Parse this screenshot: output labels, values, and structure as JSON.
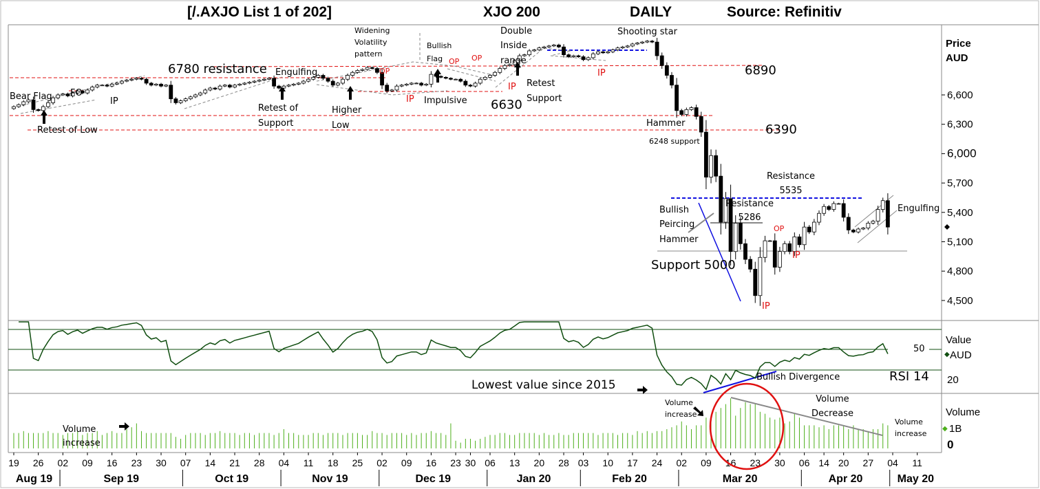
{
  "header": {
    "list": "[/.AXJO List 1 of 202]",
    "symbol": "XJO 200",
    "period": "DAILY",
    "source": "Source: Refinitiv"
  },
  "right_axis": {
    "price_title": "Price",
    "price_unit": "AUD",
    "rsi_title": "Value",
    "rsi_unit": "AUD",
    "volume_title": "Volume",
    "volume_1b": "1B",
    "volume_0": "0"
  },
  "colors": {
    "candle_up": "#ffffff",
    "candle_down": "#000000",
    "rsi_line": "#0f4d0f",
    "volume_bar": "#4caf1a",
    "resistance": "#e01010",
    "trend": "#1010e0",
    "pattern": "#888888"
  },
  "annotations": {
    "bear_flag": "Bear Flag",
    "fo": "FO",
    "ip1": "IP",
    "retest_low": "Retest of Low",
    "res6780": "6780 resistance",
    "engulfing1": "Engulfing",
    "retest_support": "Retest of\nSupport",
    "higher_low": "Higher\nLow",
    "widening": "Widening\nVolatility\npattern",
    "bullish_flag": "Bullish\nFlag",
    "op1": "OP",
    "op2": "OP",
    "op3": "OP",
    "ip2": "IP",
    "impulsive": "Impulsive",
    "l6630": "6630",
    "ip3": "IP",
    "double_inside": "Double\nInside\nrange",
    "retest_support2": "Retest\nSupport",
    "ip4": "IP",
    "shooting_star": "Shooting star",
    "l6890": "6890",
    "hammer": "Hammer",
    "s6248": "6248 support",
    "l6390": "6390",
    "res5535": "Resistance\n5535",
    "bullish_piercing": "Bullish\nPeircing\nHammer",
    "res5286": "Resistance\n5286",
    "op4": "OP",
    "ip5": "IP",
    "support5000": "Support 5000",
    "ip6": "IP",
    "engulfing2": "Engulfing",
    "rsi50": "50",
    "bullish_div": "Bullish Divergence",
    "rsi14": "RSI 14",
    "lowest": "Lowest value since 2015",
    "vol_inc1": "Volume\nincrease",
    "vol_inc2": "Volume\nincrease",
    "vol_dec": "Volume\nDecrease",
    "vol_inc3": "Volume\nincrease"
  },
  "chart_data": {
    "type": "candlestick",
    "price_axis": {
      "ticks": [
        "6,600",
        "6,300",
        "6,000",
        "5,700",
        "5,400",
        "5,100",
        "4,800",
        "4,500"
      ],
      "values": [
        6600,
        6300,
        6000,
        5700,
        5400,
        5100,
        4800,
        4500
      ],
      "ylim": [
        4400,
        7200
      ]
    },
    "rsi_axis": {
      "period": 14,
      "levels": [
        70,
        50,
        30
      ],
      "tick": "20"
    },
    "volume_unit": "B",
    "weeks": [
      {
        "label": "19",
        "month": "Aug 19",
        "c": [
          6480,
          6500,
          6530,
          6550,
          6450
        ],
        "v": [
          0.8,
          0.8,
          0.9,
          0.8,
          0.8
        ]
      },
      {
        "label": "26",
        "c": [
          6440,
          6480,
          6520,
          6570,
          6600
        ],
        "v": [
          0.8,
          0.8,
          0.9,
          0.8,
          0.8
        ]
      },
      {
        "label": "02",
        "month": "Sep 19",
        "c": [
          6610,
          6590,
          6620,
          6640,
          6620
        ],
        "v": [
          0.7,
          0.8,
          0.8,
          0.9,
          0.7
        ]
      },
      {
        "label": "09",
        "c": [
          6650,
          6680,
          6700,
          6700,
          6690
        ],
        "v": [
          0.8,
          0.8,
          0.9,
          0.7,
          0.8
        ]
      },
      {
        "label": "16",
        "c": [
          6710,
          6720,
          6740,
          6750,
          6760
        ],
        "v": [
          0.9,
          0.8,
          0.8,
          1.0,
          1.1
        ]
      },
      {
        "label": "23",
        "c": [
          6770,
          6760,
          6720,
          6700,
          6710
        ],
        "v": [
          1.3,
          0.9,
          0.8,
          0.8,
          0.8
        ]
      },
      {
        "label": "30",
        "c": [
          6690,
          6700,
          6560,
          6520,
          6540
        ],
        "v": [
          0.8,
          0.8,
          0.8,
          0.6,
          0.5
        ]
      },
      {
        "label": "07",
        "month": "Oct 19",
        "c": [
          6560,
          6580,
          6600,
          6620,
          6650
        ],
        "v": [
          0.7,
          0.8,
          0.8,
          0.8,
          0.7
        ]
      },
      {
        "label": "14",
        "c": [
          6670,
          6660,
          6690,
          6700,
          6680
        ],
        "v": [
          0.8,
          0.8,
          0.9,
          0.8,
          0.8
        ]
      },
      {
        "label": "21",
        "c": [
          6700,
          6710,
          6720,
          6730,
          6740
        ],
        "v": [
          0.8,
          0.7,
          0.8,
          0.8,
          0.7
        ]
      },
      {
        "label": "28",
        "c": [
          6750,
          6760,
          6770,
          6690,
          6670
        ],
        "v": [
          0.8,
          0.8,
          0.8,
          0.7,
          0.8
        ]
      },
      {
        "label": "04",
        "month": "Nov 19",
        "c": [
          6690,
          6700,
          6710,
          6720,
          6740
        ],
        "v": [
          1.0,
          0.8,
          0.8,
          0.7,
          0.7
        ]
      },
      {
        "label": "11",
        "c": [
          6760,
          6780,
          6800,
          6770,
          6740
        ],
        "v": [
          0.7,
          0.8,
          0.8,
          0.7,
          0.8
        ]
      },
      {
        "label": "18",
        "c": [
          6700,
          6720,
          6760,
          6800,
          6830
        ],
        "v": [
          0.8,
          0.8,
          0.7,
          0.8,
          0.8
        ]
      },
      {
        "label": "25",
        "c": [
          6850,
          6860,
          6880,
          6870,
          6830
        ],
        "v": [
          0.8,
          0.7,
          0.7,
          0.9,
          0.8
        ]
      },
      {
        "label": "02",
        "month": "Dec 19",
        "c": [
          6700,
          6640,
          6650,
          6690,
          6700
        ],
        "v": [
          0.8,
          0.7,
          0.8,
          0.8,
          0.8
        ]
      },
      {
        "label": "09",
        "c": [
          6710,
          6720,
          6720,
          6700,
          6710
        ],
        "v": [
          0.7,
          0.8,
          0.7,
          0.8,
          0.8
        ]
      },
      {
        "label": "16",
        "c": [
          6810,
          6790,
          6780,
          6770,
          6760
        ],
        "v": [
          0.9,
          0.8,
          0.8,
          0.7,
          1.3
        ]
      },
      {
        "label": "23",
        "c": [
          6760,
          6740,
          6700
        ],
        "v": [
          0.4,
          0.3,
          0.5
        ]
      },
      {
        "label": "30",
        "c": [
          6690,
          6720,
          6760,
          6780
        ],
        "v": [
          0.5,
          0.4,
          0.5,
          0.6
        ]
      },
      {
        "label": "06",
        "month": "Jan 20",
        "c": [
          6800,
          6830,
          6870,
          6900,
          6910
        ],
        "v": [
          0.7,
          0.7,
          0.8,
          0.8,
          0.7
        ]
      },
      {
        "label": "13",
        "c": [
          6950,
          7000,
          7010,
          7050,
          7060
        ],
        "v": [
          0.7,
          0.8,
          0.8,
          0.8,
          0.8
        ]
      },
      {
        "label": "20",
        "c": [
          7080,
          7090,
          7100,
          7110,
          7090
        ],
        "v": [
          0.7,
          0.8,
          0.7,
          0.7,
          0.8
        ]
      },
      {
        "label": "28",
        "c": [
          7010,
          6990,
          7000,
          6990
        ],
        "v": [
          0.7,
          0.7,
          0.8,
          0.8
        ]
      },
      {
        "label": "03",
        "month": "Feb 20",
        "c": [
          6960,
          6980,
          7020,
          7040,
          7030
        ],
        "v": [
          0.8,
          0.8,
          0.8,
          0.7,
          0.8
        ]
      },
      {
        "label": "10",
        "c": [
          7040,
          7060,
          7080,
          7090,
          7100
        ],
        "v": [
          0.8,
          0.8,
          0.7,
          0.8,
          0.8
        ]
      },
      {
        "label": "17",
        "c": [
          7120,
          7130,
          7140,
          7150,
          7140
        ],
        "v": [
          0.7,
          0.9,
          0.8,
          0.9,
          0.8
        ]
      },
      {
        "label": "24",
        "c": [
          7000,
          6900,
          6800,
          6700,
          6440
        ],
        "v": [
          0.9,
          0.9,
          1.0,
          1.1,
          1.2
        ]
      },
      {
        "label": "02",
        "month": "Mar 20",
        "c": [
          6400,
          6450,
          6470,
          6380,
          6220
        ],
        "v": [
          1.4,
          1.2,
          1.0,
          1.2,
          1.2
        ]
      },
      {
        "label": "09",
        "c": [
          5760,
          5980,
          5770,
          5300,
          5540
        ],
        "v": [
          1.6,
          1.5,
          1.9,
          2.1,
          2.3
        ]
      },
      {
        "label": "16",
        "c": [
          5000,
          5290,
          5080,
          4920,
          4820
        ],
        "v": [
          2.6,
          1.7,
          2.1,
          2.4,
          2.3
        ]
      },
      {
        "label": "23",
        "c": [
          4550,
          4940,
          5110,
          5110,
          4840
        ],
        "v": [
          2.3,
          1.9,
          1.8,
          1.6,
          1.5
        ]
      },
      {
        "label": "30",
        "c": [
          5000,
          5080,
          5000,
          5150,
          5070
        ],
        "v": [
          1.6,
          1.3,
          1.4,
          1.8,
          1.6
        ]
      },
      {
        "label": "06",
        "month": "Apr 20",
        "c": [
          5250,
          5200,
          5300,
          5390
        ],
        "v": [
          1.2,
          1.2,
          1.2,
          1.1
        ]
      },
      {
        "label": "14",
        "c": [
          5460,
          5430,
          5490,
          5490
        ],
        "v": [
          1.2,
          1.0,
          1.2,
          1.2
        ]
      },
      {
        "label": "20",
        "c": [
          5350,
          5220,
          5200,
          5230,
          5240
        ],
        "v": [
          1.2,
          1.0,
          1.2,
          1.0,
          1.0
        ]
      },
      {
        "label": "27",
        "c": [
          5290,
          5310,
          5430,
          5520,
          5250
        ],
        "v": [
          0.9,
          1.0,
          1.0,
          1.3,
          1.2
        ]
      }
    ],
    "future_ticks": [
      {
        "label": "04",
        "month": "May 20"
      },
      {
        "label": "11"
      }
    ]
  }
}
